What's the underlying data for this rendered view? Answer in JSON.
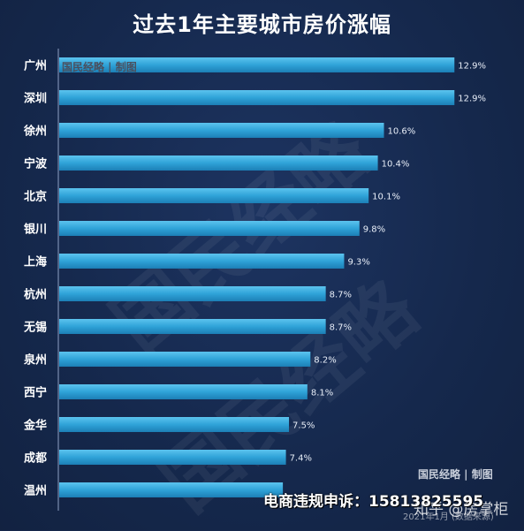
{
  "chart_data": {
    "type": "bar",
    "orientation": "horizontal",
    "title": "过去1年主要城市房价涨幅",
    "categories": [
      "广州",
      "深圳",
      "徐州",
      "宁波",
      "北京",
      "银川",
      "上海",
      "杭州",
      "无锡",
      "泉州",
      "西宁",
      "金华",
      "成都",
      "温州"
    ],
    "values": [
      12.9,
      12.9,
      10.6,
      10.4,
      10.1,
      9.8,
      9.3,
      8.7,
      8.7,
      8.2,
      8.1,
      7.5,
      7.4,
      7.3
    ],
    "value_labels": [
      "12.9%",
      "12.9%",
      "10.6%",
      "10.4%",
      "10.1%",
      "9.8%",
      "9.3%",
      "8.7%",
      "8.7%",
      "8.2%",
      "8.1%",
      "7.5%",
      "7.4%",
      ""
    ],
    "xlim": [
      0,
      13.7
    ],
    "bar_color": "#2fa3d8",
    "grid": false,
    "legend": "none"
  },
  "watermark": {
    "stamp_top": "国民经略 | 制图",
    "stamp_bottom": "国民经略 | 制图",
    "background_text": "国民经略"
  },
  "overlay": {
    "complaint": "电商违规申诉：15813825595",
    "zhihu": "知乎 @房掌柜",
    "source": "2021年1月 (数据来源)"
  },
  "colors": {
    "background": "#16284b",
    "bar": "#2fa3d8",
    "text": "#ffffff"
  }
}
